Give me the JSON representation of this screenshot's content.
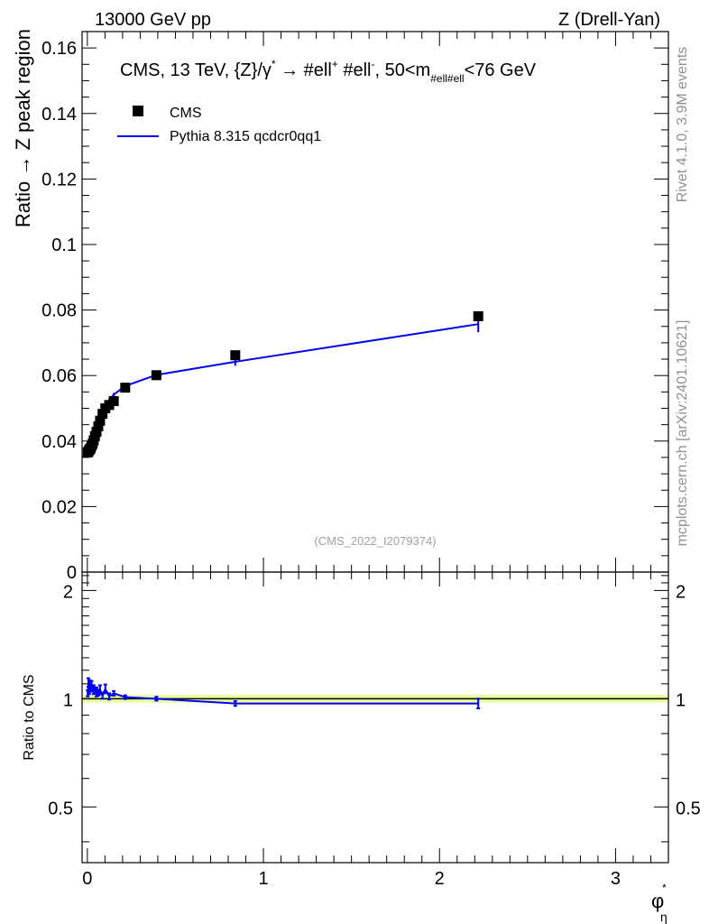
{
  "header": {
    "left": "13000 GeV pp",
    "right": "Z (Drell-Yan)"
  },
  "side_labels": {
    "rivet": "Rivet 4.1.0,  3.9M events",
    "mcplots": "mcplots.cern.ch [arXiv:2401.10621]"
  },
  "chart_data": {
    "type": "scatter",
    "title": {
      "prefix": "CMS, 13 TeV, {Z}/γ",
      "sup1": "*",
      "arrow": " →  #ell",
      "sup2": "+",
      "mid": " #ell",
      "sup3": "-",
      "pre_m": ", 50<m",
      "sub": "#ell#ell",
      "suffix": "<76 GeV"
    },
    "analysis_tag": "(CMS_2022_I2079374)",
    "xlabel": {
      "main": "φ",
      "sup": "*",
      "sub": "η"
    },
    "ylabel": "Ratio → Z peak region",
    "ratio_ylabel": "Ratio to CMS",
    "xlim": [
      -0.03,
      3.3
    ],
    "ylim": [
      0,
      0.165
    ],
    "ratio_ylim": [
      0.35,
      2.25
    ],
    "x_ticks": [
      "0",
      "1",
      "2",
      "3"
    ],
    "y_ticks": [
      "0",
      "0.02",
      "0.04",
      "0.06",
      "0.08",
      "0.1",
      "0.12",
      "0.14",
      "0.16"
    ],
    "ratio_ticks": [
      "0.5",
      "1",
      "2"
    ],
    "legend": {
      "data_label": "CMS",
      "mc_label": "Pythia 8.315 qcdcr0qq1",
      "placement": "top-left"
    },
    "colors": {
      "data": "#000000",
      "mc": "#0000ee",
      "band": "#eaffa0",
      "band_edge": "#c8f060"
    },
    "series": [
      {
        "name": "CMS",
        "x": [
          0.002,
          0.006,
          0.01,
          0.014,
          0.018,
          0.024,
          0.03,
          0.036,
          0.043,
          0.052,
          0.062,
          0.072,
          0.086,
          0.102,
          0.124,
          0.15,
          0.215,
          0.392,
          0.84,
          2.22
        ],
        "y": [
          0.0365,
          0.0368,
          0.0372,
          0.0375,
          0.0378,
          0.0385,
          0.0392,
          0.0402,
          0.0415,
          0.0428,
          0.0445,
          0.0462,
          0.0483,
          0.05,
          0.051,
          0.0522,
          0.0563,
          0.0601,
          0.0662,
          0.0781
        ]
      },
      {
        "name": "Pythia 8.315 qcdcr0qq1",
        "x": [
          0.002,
          0.006,
          0.01,
          0.014,
          0.018,
          0.024,
          0.03,
          0.036,
          0.043,
          0.052,
          0.062,
          0.072,
          0.086,
          0.102,
          0.124,
          0.15,
          0.215,
          0.392,
          0.84,
          2.22
        ],
        "y": [
          0.0378,
          0.0385,
          0.0392,
          0.0398,
          0.0402,
          0.0412,
          0.0418,
          0.0426,
          0.0438,
          0.0448,
          0.0462,
          0.0475,
          0.049,
          0.0505,
          0.0525,
          0.0542,
          0.0568,
          0.0602,
          0.0642,
          0.0757
        ],
        "yerr": [
          0.0005,
          0.0005,
          0.0005,
          0.0005,
          0.0005,
          0.0005,
          0.0005,
          0.0005,
          0.0005,
          0.0005,
          0.0005,
          0.0005,
          0.0005,
          0.0005,
          0.0005,
          0.0005,
          0.0006,
          0.0008,
          0.0012,
          0.0025
        ]
      }
    ],
    "ratio": {
      "x": [
        0.002,
        0.006,
        0.01,
        0.014,
        0.018,
        0.024,
        0.03,
        0.036,
        0.043,
        0.052,
        0.062,
        0.072,
        0.086,
        0.102,
        0.124,
        0.15,
        0.215,
        0.392,
        0.84,
        2.22
      ],
      "y": [
        1.035,
        1.11,
        1.05,
        1.095,
        1.065,
        1.09,
        1.07,
        1.06,
        1.055,
        1.045,
        1.04,
        1.06,
        1.02,
        1.065,
        1.015,
        1.035,
        1.01,
        1.0,
        0.97,
        0.97
      ],
      "yerr": [
        0.02,
        0.03,
        0.02,
        0.03,
        0.02,
        0.03,
        0.02,
        0.03,
        0.02,
        0.03,
        0.02,
        0.03,
        0.02,
        0.03,
        0.02,
        0.015,
        0.012,
        0.012,
        0.015,
        0.03
      ]
    },
    "data_band_halfwidth": 0.025
  }
}
